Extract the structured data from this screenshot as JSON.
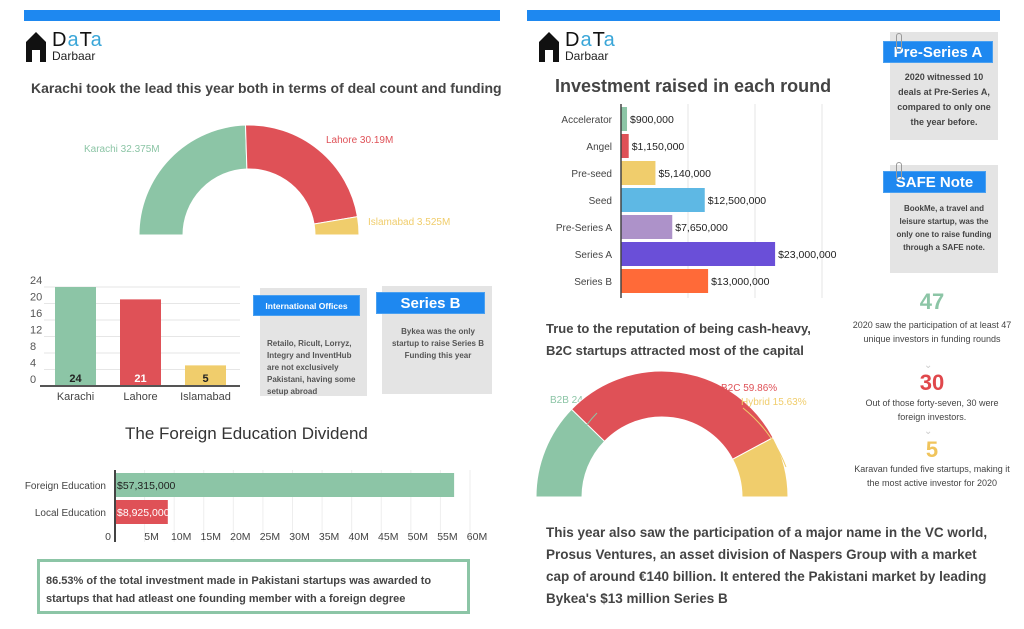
{
  "brand": {
    "name_top": "DaTa",
    "name_bottom": "Darbaar"
  },
  "left": {
    "title": "Karachi took the lead this year both in terms of deal count and funding",
    "offices": {
      "tag": "International Offices",
      "text": "Retailo, Ricult, Lorryz, Integry and InventHub are not exclusively Pakistani, having some setup abroad"
    },
    "seriesb": {
      "tag": "Series B",
      "text": "Bykea was the only startup to raise Series B Funding this year"
    },
    "edu_title": "The Foreign Education Dividend",
    "callout": "86.53% of the total investment made in Pakistani startups was awarded to startups that had atleast one founding member with a foreign degree"
  },
  "right": {
    "title": "Investment raised in each round",
    "b2c_title": "True to the reputation of being cash-heavy, B2C startups attracted most of the capital",
    "preseries": {
      "tag": "Pre-Series A",
      "text": "2020 witnessed 10 deals at Pre-Series A, compared to only one the year before."
    },
    "safe": {
      "tag": "SAFE Note",
      "text": "BookMe, a travel and leisure startup, was the only one to raise funding through a SAFE note."
    },
    "stats": [
      {
        "num": "47",
        "text": "2020 saw the participation of at least 47 unique investors in funding rounds",
        "color": "#8cc5a6"
      },
      {
        "num": "30",
        "text": "Out of those forty-seven, 30 were foreign investors.",
        "color": "#e0484c"
      },
      {
        "num": "5",
        "text": "Karavan funded five startups, making it the most active investor for 2020",
        "color": "#f0c45c"
      }
    ],
    "prosus": "This year also saw the participation of a major name in the VC world, Prosus Ventures, an asset division of Naspers Group with a market cap of around €140 billion. It entered the Pakistani market by leading Bykea's $13 million Series B"
  },
  "chart_data": [
    {
      "id": "city_funding",
      "type": "pie",
      "variant": "half-donut",
      "categories": [
        "Karachi",
        "Lahore",
        "Islamabad"
      ],
      "values": [
        32.375,
        30.19,
        3.525
      ],
      "labels": [
        "Karachi 32.375M",
        "Lahore 30.19M",
        "Islamabad 3.525M"
      ],
      "colors": [
        "#8cc5a6",
        "#df5157",
        "#f0cd6c"
      ]
    },
    {
      "id": "city_deals",
      "type": "bar",
      "categories": [
        "Karachi",
        "Lahore",
        "Islamabad"
      ],
      "values": [
        24,
        21,
        5
      ],
      "ylim": [
        0,
        24
      ],
      "yticks": [
        0,
        4,
        8,
        12,
        16,
        20,
        24
      ],
      "colors": [
        "#8cc5a6",
        "#df5157",
        "#f0cd6c"
      ],
      "label_colors": [
        "#222",
        "#fff",
        "#222"
      ]
    },
    {
      "id": "education",
      "type": "bar",
      "orientation": "horizontal",
      "categories": [
        "Foreign Education",
        "Local Education"
      ],
      "values": [
        57315000,
        8925000
      ],
      "labels": [
        "$57,315,000",
        "$8,925,000"
      ],
      "xlim": [
        0,
        60000000
      ],
      "xticks": [
        "0",
        "5M",
        "10M",
        "15M",
        "20M",
        "25M",
        "30M",
        "35M",
        "40M",
        "45M",
        "50M",
        "55M",
        "60M"
      ],
      "colors": [
        "#8cc5a6",
        "#df5157"
      ],
      "label_colors": [
        "#222",
        "#fff"
      ]
    },
    {
      "id": "rounds",
      "type": "bar",
      "orientation": "horizontal",
      "title": "Investment raised in each round",
      "categories": [
        "Accelerator",
        "Angel",
        "Pre-seed",
        "Seed",
        "Pre-Series A",
        "Series A",
        "Series B"
      ],
      "values": [
        900000,
        1150000,
        5140000,
        12500000,
        7650000,
        23000000,
        13000000
      ],
      "labels": [
        "$900,000",
        "$1,150,000",
        "$5,140,000",
        "$12,500,000",
        "$7,650,000",
        "$23,000,000",
        "$13,000,000"
      ],
      "xlim": [
        0,
        30000000
      ],
      "grid": true,
      "colors": [
        "#8cc5a6",
        "#df5157",
        "#f0cd6c",
        "#5eb8e4",
        "#ad92c9",
        "#6a4fd8",
        "#ff6a38"
      ]
    },
    {
      "id": "business_model",
      "type": "pie",
      "variant": "half-donut",
      "categories": [
        "B2B",
        "B2C",
        "Hybrid"
      ],
      "values": [
        24.51,
        59.86,
        15.63
      ],
      "labels": [
        "B2B 24.51%",
        "B2C 59.86%",
        "Hybrid 15.63%"
      ],
      "colors": [
        "#8cc5a6",
        "#df5157",
        "#f0cd6c"
      ]
    }
  ]
}
